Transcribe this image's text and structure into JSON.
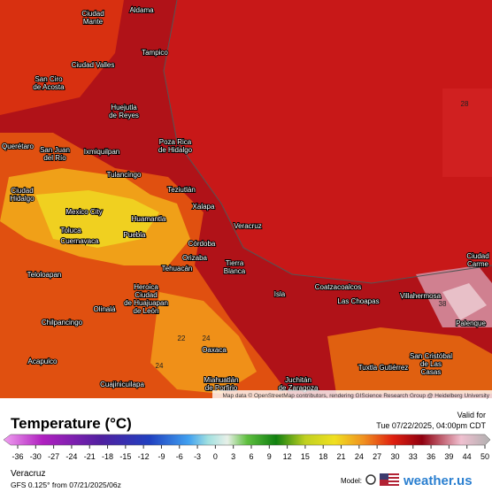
{
  "map": {
    "cities": [
      [
        "Aldama"
      ],
      [
        "Ciudad",
        "Mante"
      ],
      [
        "Tampico"
      ],
      [
        "Ciudad Valles"
      ],
      [
        "San Ciro",
        "de Acosta"
      ],
      [
        "Huejutla",
        "de Reyes"
      ],
      [
        "Poza Rica",
        "de Hidalgo"
      ],
      [
        "Querétaro"
      ],
      [
        "San Juan",
        "del Río"
      ],
      [
        "Ixmiquilpan"
      ],
      [
        "Tulancingo"
      ],
      [
        "Teziutlán"
      ],
      [
        "Ciudad",
        "Hidalgo"
      ],
      [
        "Xalapa"
      ],
      [
        "Mexico City"
      ],
      [
        "Huamantla"
      ],
      [
        "Veracruz"
      ],
      [
        "Toluca"
      ],
      [
        "Cuernavaca"
      ],
      [
        "Puebla"
      ],
      [
        "Córdoba"
      ],
      [
        "Orizaba"
      ],
      [
        "Tierra",
        "Blanca"
      ],
      [
        "Tehuacán"
      ],
      [
        "Teloloapan"
      ],
      [
        "Heroica",
        "Ciudad",
        "de Huajuapan",
        "de León"
      ],
      [
        "Isla"
      ],
      [
        "Coatzacoalcos"
      ],
      [
        "Las Choapas"
      ],
      [
        "Villahermosa"
      ],
      [
        "Palenque"
      ],
      [
        "Ciudad",
        "Carme"
      ],
      [
        "Chilpancingo"
      ],
      [
        "Olinalá"
      ],
      [
        "Oaxaca"
      ],
      [
        "Acapulco"
      ],
      [
        "Tuxtla Gutiérrez"
      ],
      [
        "San Cristóbal",
        "de Las",
        "Casas"
      ],
      [
        "Miahuatlán",
        "de Porfirio"
      ],
      [
        "Juchitán",
        "de Zaragoza"
      ],
      [
        "Cuajinicuilapa"
      ]
    ],
    "contour_labels": [
      "28",
      "38",
      "22",
      "24",
      "24"
    ],
    "attribution": "Map data © OpenStreetMap contributors, rendering GIScience Research Group @ Heidelberg University"
  },
  "legend": {
    "title": "Temperature (°C)",
    "valid_label": "Valid for",
    "valid_time": "Tue 07/22/2025, 04:00pm CDT",
    "ticks": [
      -36,
      -30,
      -27,
      -24,
      -21,
      -18,
      -15,
      -12,
      -9,
      -6,
      -3,
      0,
      3,
      6,
      9,
      12,
      15,
      18,
      21,
      24,
      27,
      30,
      33,
      36,
      39,
      44,
      50
    ]
  },
  "footer": {
    "region": "Veracruz",
    "model_run": "GFS 0.125° from 07/21/2025/06z",
    "model_label": "Model:",
    "brand": "weather.us"
  }
}
